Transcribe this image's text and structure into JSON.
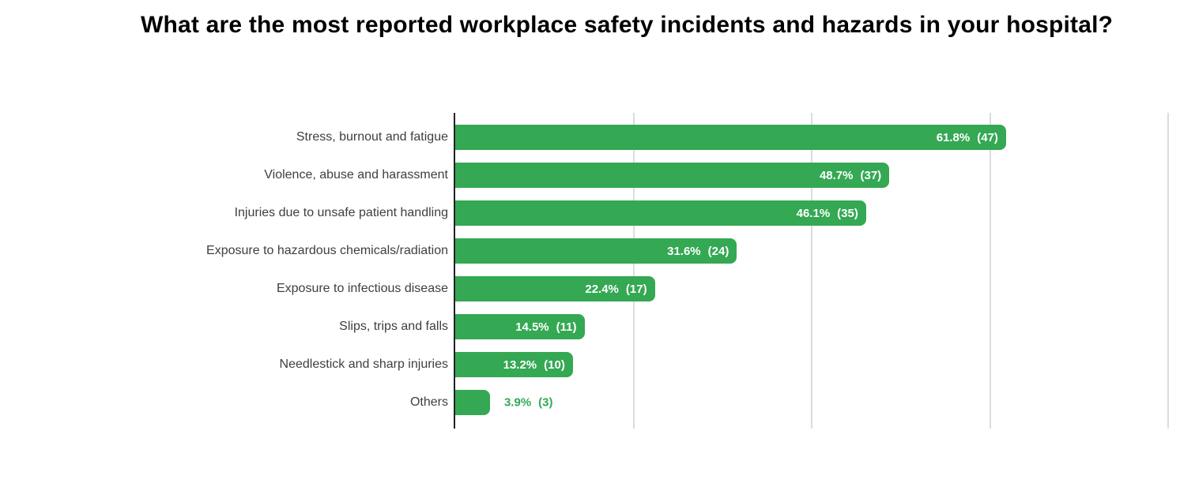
{
  "title": "What are the most reported workplace safety incidents and hazards in your hospital?",
  "colors": {
    "bar": "#34a853",
    "value_label_inside": "#ffffff",
    "value_label_outside": "#34a853",
    "category_label": "#3c4043",
    "axis_line": "#202124",
    "gridline": "#dadce0",
    "title": "#000000",
    "background": "#ffffff"
  },
  "chart_data": {
    "type": "bar",
    "orientation": "horizontal",
    "title": "What are the most reported workplace safety incidents and hazards in your hospital?",
    "xlabel": "",
    "ylabel": "",
    "xlim": [
      0,
      83
    ],
    "gridlines_at_percent": [
      20,
      40,
      60,
      80
    ],
    "grid": true,
    "legend": false,
    "axis_tick_labels_visible": false,
    "categories": [
      "Stress, burnout and fatigue",
      "Violence, abuse and harassment",
      "Injuries due to unsafe patient handling",
      "Exposure to hazardous chemicals/radiation",
      "Exposure to infectious disease",
      "Slips, trips and falls",
      "Needlestick and sharp injuries",
      "Others"
    ],
    "bars": [
      {
        "category": "Stress, burnout and fatigue",
        "percent": 61.8,
        "count": 47,
        "percent_label": "61.8%",
        "count_label": "(47)",
        "value_label_position": "inside"
      },
      {
        "category": "Violence, abuse and harassment",
        "percent": 48.7,
        "count": 37,
        "percent_label": "48.7%",
        "count_label": "(37)",
        "value_label_position": "inside"
      },
      {
        "category": "Injuries due to unsafe patient handling",
        "percent": 46.1,
        "count": 35,
        "percent_label": "46.1%",
        "count_label": "(35)",
        "value_label_position": "inside"
      },
      {
        "category": "Exposure to hazardous chemicals/radiation",
        "percent": 31.6,
        "count": 24,
        "percent_label": "31.6%",
        "count_label": "(24)",
        "value_label_position": "inside"
      },
      {
        "category": "Exposure to infectious disease",
        "percent": 22.4,
        "count": 17,
        "percent_label": "22.4%",
        "count_label": "(17)",
        "value_label_position": "inside"
      },
      {
        "category": "Slips, trips and falls",
        "percent": 14.5,
        "count": 11,
        "percent_label": "14.5%",
        "count_label": "(11)",
        "value_label_position": "inside"
      },
      {
        "category": "Needlestick and sharp injuries",
        "percent": 13.2,
        "count": 10,
        "percent_label": "13.2%",
        "count_label": "(10)",
        "value_label_position": "inside"
      },
      {
        "category": "Others",
        "percent": 3.9,
        "count": 3,
        "percent_label": "3.9%",
        "count_label": "(3)",
        "value_label_position": "outside"
      }
    ]
  }
}
